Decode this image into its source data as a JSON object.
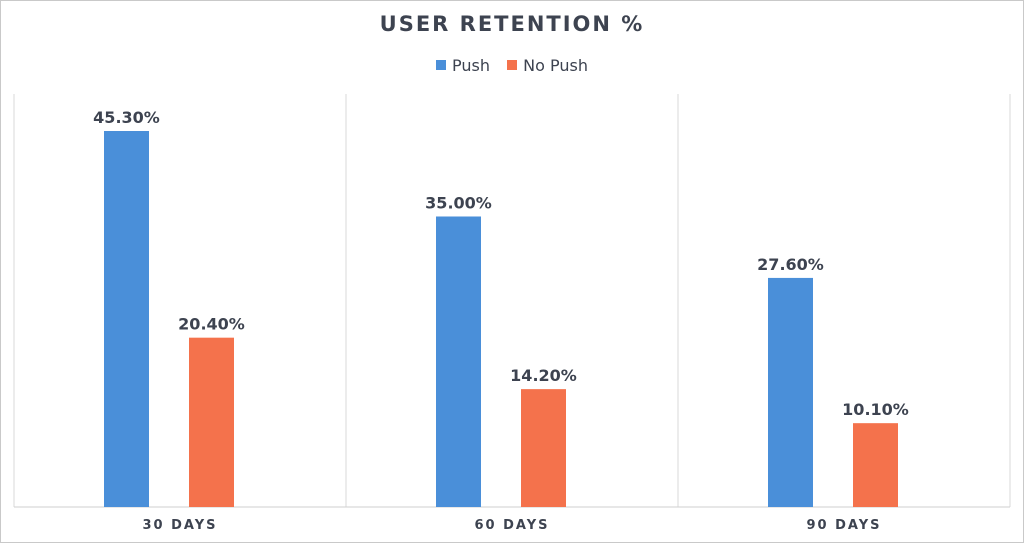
{
  "chart_data": {
    "type": "bar",
    "title": "USER RETENTION %",
    "categories": [
      "30 DAYS",
      "60 DAYS",
      "90 DAYS"
    ],
    "series": [
      {
        "name": "Push",
        "color": "#4a8fd9",
        "values": [
          45.3,
          35.0,
          27.6
        ],
        "labels": [
          "45.30%",
          "35.00%",
          "27.60%"
        ]
      },
      {
        "name": "No Push",
        "color": "#f4724c",
        "values": [
          20.4,
          14.2,
          10.1
        ],
        "labels": [
          "20.40%",
          "14.20%",
          "10.10%"
        ]
      }
    ],
    "ylim": [
      0,
      50
    ],
    "xlabel": "",
    "ylabel": "",
    "grid": "vertical category separators",
    "legend_position": "top"
  }
}
